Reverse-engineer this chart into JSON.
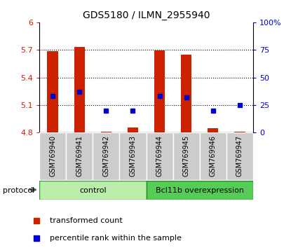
{
  "title": "GDS5180 / ILMN_2955940",
  "samples": [
    "GSM769940",
    "GSM769941",
    "GSM769942",
    "GSM769943",
    "GSM769944",
    "GSM769945",
    "GSM769946",
    "GSM769947"
  ],
  "transformed_counts": [
    5.685,
    5.73,
    4.81,
    4.855,
    5.695,
    5.645,
    4.845,
    4.81
  ],
  "bar_base": 4.8,
  "percentile_ranks": [
    33,
    37,
    20,
    20,
    33,
    32,
    20,
    25
  ],
  "ylim_left": [
    4.8,
    6.0
  ],
  "ylim_right": [
    0,
    100
  ],
  "yticks_left": [
    4.8,
    5.1,
    5.4,
    5.7,
    6.0
  ],
  "yticks_right": [
    0,
    25,
    50,
    75,
    100
  ],
  "ytick_labels_left": [
    "4.8",
    "5.1",
    "5.4",
    "5.7",
    "6"
  ],
  "ytick_labels_right": [
    "0",
    "25",
    "50",
    "75",
    "100%"
  ],
  "bar_color": "#cc2200",
  "dot_color": "#0000cc",
  "grid_color": "#000000",
  "tick_color_left": "#cc2200",
  "tick_color_right": "#0000cc",
  "protocol_label": "protocol",
  "legend_items": [
    "transformed count",
    "percentile rank within the sample"
  ],
  "sample_bg_color": "#cccccc",
  "control_color": "#bbeeaa",
  "bcl_color": "#55cc55",
  "control_label": "control",
  "bcl_label": "Bcl11b overexpression"
}
